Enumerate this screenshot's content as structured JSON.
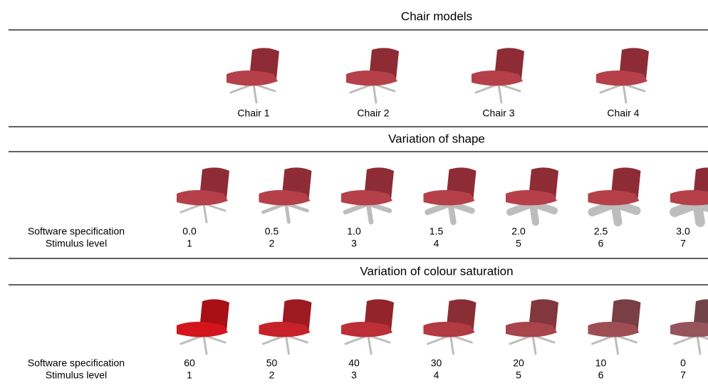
{
  "header": {
    "title": "Chair models"
  },
  "models": [
    "Chair 1",
    "Chair 2",
    "Chair 3",
    "Chair 4"
  ],
  "sections": [
    {
      "title": "Variation of shape",
      "rows": [
        {
          "label": "Software specification",
          "values": [
            "0.0",
            "0.5",
            "1.0",
            "1.5",
            "2.0",
            "2.5",
            "3.0"
          ]
        },
        {
          "label": "Stimulus level",
          "values": [
            1,
            2,
            3,
            4,
            5,
            6,
            7
          ]
        }
      ]
    },
    {
      "title": "Variation of colour saturation",
      "rows": [
        {
          "label": "Software specification",
          "values": [
            60,
            50,
            40,
            30,
            20,
            10,
            0
          ]
        },
        {
          "label": "Stimulus level",
          "values": [
            1,
            2,
            3,
            4,
            5,
            6,
            7
          ]
        }
      ]
    }
  ]
}
